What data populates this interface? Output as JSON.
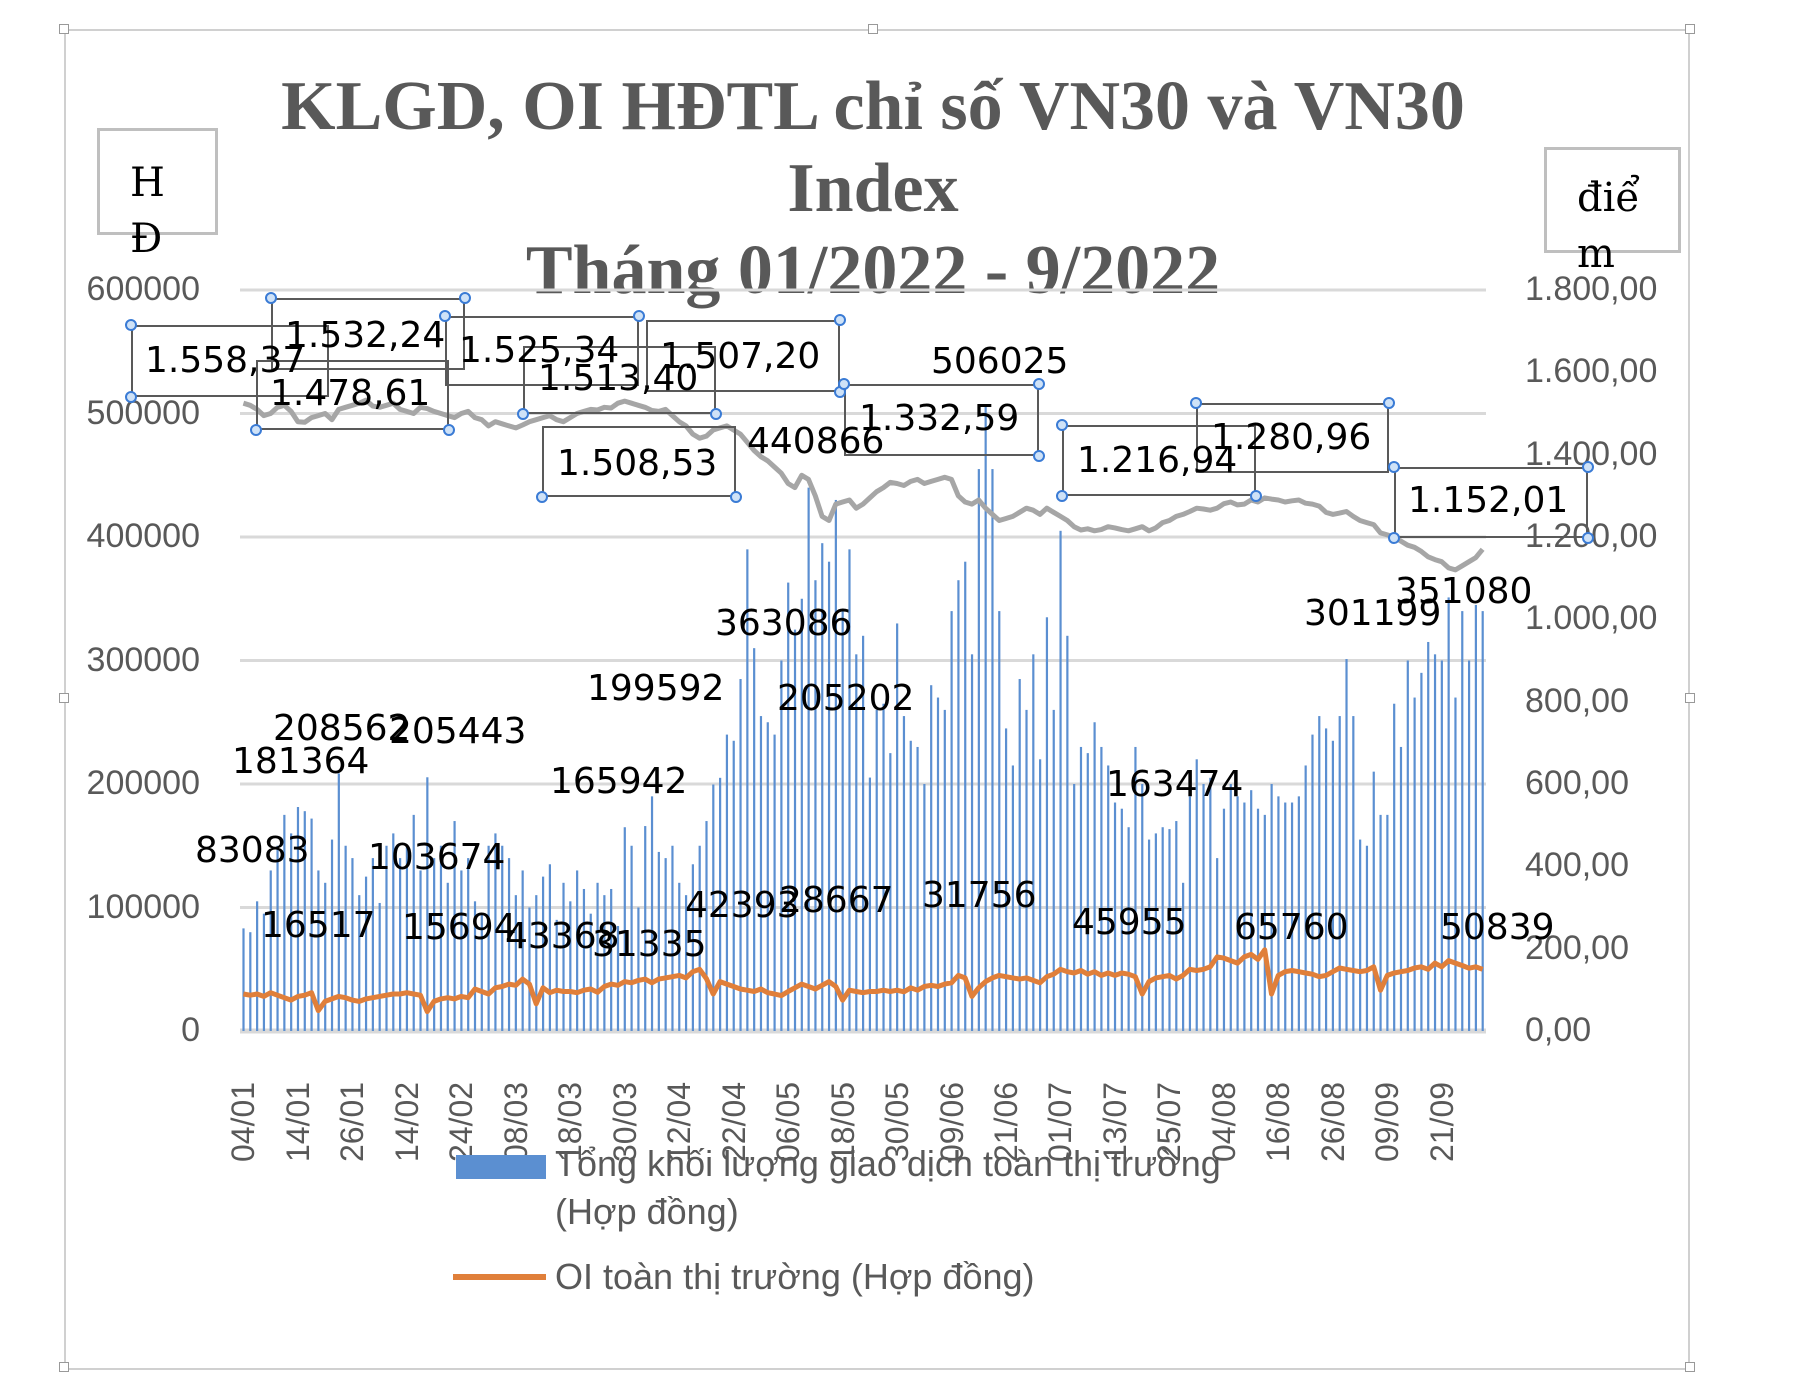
{
  "chart_data": {
    "type": "bar+line",
    "title_lines": [
      "KLGD, OI HĐTL chỉ số VN30 và VN30",
      "Index",
      "Tháng 01/2022 - 9/2022"
    ],
    "ylabel_left": "H Đ",
    "ylabel_left_lines": [
      "H",
      "Đ"
    ],
    "ylabel_right_lines": [
      "điể",
      "m"
    ],
    "ylim_left": [
      0,
      600000
    ],
    "ylim_right": [
      0,
      1800
    ],
    "yticks_left": [
      "0",
      "100000",
      "200000",
      "300000",
      "400000",
      "500000",
      "600000"
    ],
    "yticks_right": [
      "0,00",
      "200,00",
      "400,00",
      "600,00",
      "800,00",
      "1.000,00",
      "1.200,00",
      "1.400,00",
      "1.600,00",
      "1.800,00"
    ],
    "xticks": [
      "04/01",
      "14/01",
      "26/01",
      "14/02",
      "24/02",
      "08/03",
      "18/03",
      "30/03",
      "12/04",
      "22/04",
      "06/05",
      "18/05",
      "30/05",
      "09/06",
      "21/06",
      "01/07",
      "13/07",
      "25/07",
      "04/08",
      "16/08",
      "26/08",
      "09/09",
      "21/09"
    ],
    "grid": true,
    "legend_placement": "bottom",
    "colors": {
      "volume": "#5b8fd1",
      "oi": "#e07f3a",
      "index": "#a6a6a6",
      "grid": "#d9d9d9",
      "text": "#595959"
    },
    "series": [
      {
        "name": "Tổng khối lượng giao dịch toàn thị trường (Hợp đồng)",
        "name_lines": [
          "Tổng khối lượng giao dịch toàn thị trường",
          "(Hợp đồng)"
        ],
        "type": "bar",
        "axis": "left",
        "values": [
          83083,
          80000,
          105000,
          95000,
          130000,
          150000,
          175000,
          160000,
          181364,
          178000,
          172000,
          130000,
          120000,
          155000,
          208562,
          150000,
          140000,
          110000,
          125000,
          140000,
          103674,
          150000,
          160000,
          140000,
          150000,
          175000,
          130000,
          205443,
          140000,
          150000,
          120000,
          170000,
          130000,
          140000,
          105000,
          95000,
          150000,
          160000,
          150000,
          140000,
          110000,
          130000,
          100000,
          110000,
          125000,
          135000,
          90000,
          120000,
          105000,
          130000,
          115000,
          95000,
          120000,
          110000,
          115000,
          85000,
          165000,
          150000,
          100000,
          165942,
          190000,
          145000,
          140000,
          150000,
          120000,
          110000,
          135000,
          150000,
          170000,
          199592,
          205000,
          240000,
          235000,
          285000,
          390000,
          310000,
          255000,
          250000,
          240000,
          300000,
          363086,
          325000,
          350000,
          440000,
          365000,
          395000,
          380000,
          430000,
          340000,
          390000,
          305000,
          320000,
          205202,
          260000,
          265000,
          225000,
          330000,
          255000,
          235000,
          230000,
          200000,
          280000,
          270000,
          260000,
          340000,
          365000,
          380000,
          305000,
          455000,
          506025,
          455000,
          340000,
          245000,
          215000,
          285000,
          260000,
          305000,
          220000,
          335000,
          260000,
          405000,
          320000,
          200000,
          230000,
          225000,
          250000,
          230000,
          215000,
          185000,
          180000,
          165000,
          230000,
          200000,
          155000,
          160000,
          165000,
          163474,
          170000,
          120000,
          190000,
          220000,
          200000,
          205000,
          140000,
          180000,
          200000,
          190000,
          185000,
          195000,
          180000,
          175000,
          200000,
          190000,
          185000,
          185000,
          190000,
          215000,
          240000,
          255000,
          245000,
          235000,
          255000,
          301199,
          255000,
          155000,
          150000,
          210000,
          175000,
          175000,
          265000,
          230000,
          300000,
          270000,
          290000,
          315000,
          305000,
          300000,
          351080,
          270000,
          340000,
          300000,
          345000,
          340000
        ]
      },
      {
        "name": "OI toàn thị trường (Hợp đồng)",
        "type": "line",
        "axis": "left",
        "values": [
          30000,
          29000,
          30000,
          28000,
          31000,
          29000,
          27000,
          25000,
          28000,
          29000,
          31000,
          16517,
          24000,
          26000,
          28000,
          27000,
          25000,
          24000,
          26000,
          27000,
          28000,
          29000,
          30000,
          30000,
          31000,
          30000,
          29000,
          15694,
          24000,
          26000,
          27000,
          26000,
          28000,
          27000,
          34000,
          32000,
          30000,
          35000,
          36000,
          38000,
          37000,
          42000,
          38000,
          22000,
          35000,
          31000,
          33000,
          32000,
          32000,
          31000,
          33000,
          34000,
          31335,
          36000,
          38000,
          37000,
          40000,
          39000,
          41000,
          42000,
          39000,
          42000,
          43000,
          44000,
          45000,
          43000,
          48000,
          50000,
          42393,
          30000,
          40000,
          38000,
          36000,
          34000,
          33000,
          32000,
          34000,
          31000,
          30000,
          28667,
          32000,
          35000,
          38000,
          36000,
          34000,
          37000,
          40000,
          36000,
          25000,
          33000,
          32000,
          31000,
          32000,
          32000,
          33000,
          32000,
          33000,
          31756,
          35000,
          33000,
          36000,
          37000,
          36000,
          38000,
          39000,
          45000,
          43000,
          28000,
          35000,
          40000,
          43000,
          45000,
          44000,
          43000,
          42000,
          43000,
          41000,
          39000,
          44000,
          46000,
          50000,
          48000,
          47000,
          49000,
          46000,
          48000,
          45000,
          47000,
          45000,
          47000,
          45955,
          44000,
          30000,
          40000,
          43000,
          44000,
          45000,
          42000,
          45000,
          50000,
          49000,
          50000,
          52000,
          60000,
          59000,
          57000,
          55000,
          60000,
          62000,
          58000,
          65760,
          30000,
          45000,
          48000,
          49000,
          48000,
          47000,
          46000,
          44000,
          45000,
          48000,
          51000,
          50000,
          49000,
          48000,
          49000,
          52000,
          33000,
          45000,
          47000,
          48000,
          49000,
          51000,
          52000,
          50000,
          55000,
          52000,
          57000,
          55000,
          53000,
          50839,
          52000,
          50000
        ]
      },
      {
        "name": "VN30 Index",
        "type": "line",
        "axis": "right",
        "values": [
          1525,
          1520,
          1510,
          1495,
          1500,
          1515,
          1520,
          1505,
          1480,
          1478.61,
          1490,
          1495,
          1500,
          1485,
          1510,
          1515,
          1520,
          1525,
          1532.24,
          1518,
          1515,
          1520,
          1525,
          1510,
          1505,
          1500,
          1515,
          1512,
          1505,
          1500,
          1495,
          1490,
          1500,
          1505,
          1490,
          1485,
          1470,
          1480,
          1475,
          1470,
          1465,
          1472,
          1480,
          1485,
          1490,
          1495,
          1485,
          1480,
          1490,
          1500,
          1505,
          1510,
          1508.53,
          1515,
          1513.4,
          1525,
          1530,
          1525,
          1520,
          1515,
          1507.2,
          1505,
          1510,
          1495,
          1480,
          1470,
          1450,
          1440,
          1445,
          1460,
          1465,
          1470,
          1460,
          1450,
          1430,
          1410,
          1395,
          1385,
          1370,
          1355,
          1330,
          1320,
          1350,
          1340,
          1300,
          1250,
          1240,
          1280,
          1285,
          1290,
          1270,
          1280,
          1295,
          1310,
          1320,
          1332.59,
          1330,
          1325,
          1335,
          1340,
          1330,
          1335,
          1340,
          1345,
          1340,
          1300,
          1285,
          1280,
          1290,
          1270,
          1255,
          1240,
          1245,
          1250,
          1260,
          1270,
          1265,
          1255,
          1270,
          1260,
          1250,
          1240,
          1225,
          1216.94,
          1220,
          1215,
          1218,
          1225,
          1222,
          1218,
          1215,
          1220,
          1225,
          1215,
          1222,
          1235,
          1240,
          1250,
          1255,
          1262,
          1270,
          1268,
          1265,
          1270,
          1280.96,
          1285,
          1278,
          1280,
          1290,
          1285,
          1295,
          1292,
          1290,
          1285,
          1288,
          1290,
          1282,
          1280,
          1275,
          1260,
          1255,
          1258,
          1262,
          1250,
          1240,
          1235,
          1230,
          1210,
          1205,
          1200,
          1190,
          1180,
          1175,
          1165,
          1152.01,
          1145,
          1140,
          1125,
          1120,
          1130,
          1140,
          1150,
          1170
        ]
      }
    ],
    "annotations": [
      "1.558,37",
      "1.532,24",
      "1.478,61",
      "1.525,34",
      "1.513,40",
      "1.507,20",
      "1.508,53",
      "440866",
      "506025",
      "1.332,59",
      "1.216,94",
      "1.280,96",
      "1.152,01",
      "351080",
      "301199",
      "363086",
      "199592",
      "205202",
      "208562",
      "205443",
      "181364",
      "165942",
      "163474",
      "83083",
      "103674",
      "16517",
      "15694",
      "43368",
      "31335",
      "42393",
      "28667",
      "31756",
      "45955",
      "65760",
      "50839"
    ]
  }
}
